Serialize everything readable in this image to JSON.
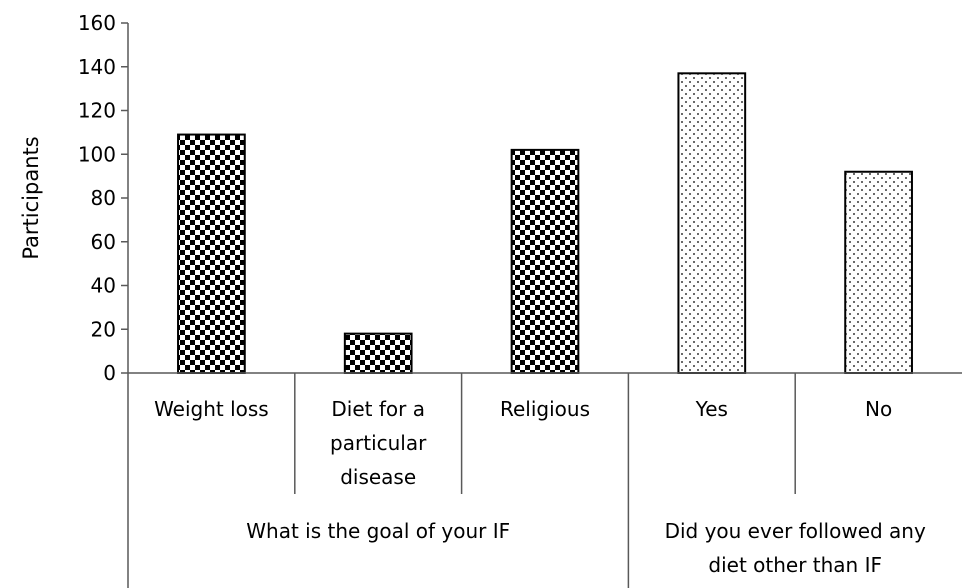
{
  "chart_data": {
    "type": "bar",
    "ylabel": "Participants",
    "xlabel": "",
    "ylim": [
      0,
      160
    ],
    "yticks": [
      0,
      20,
      40,
      60,
      80,
      100,
      120,
      140,
      160
    ],
    "grid": false,
    "legend": "none",
    "groups": [
      {
        "label": "What is the goal of your IF",
        "label_lines": [
          "What is the goal of your IF"
        ],
        "pattern": "checker",
        "categories": [
          {
            "label_lines": [
              "Weight loss"
            ],
            "value": 109
          },
          {
            "label_lines": [
              "Diet for a",
              "particular",
              "disease"
            ],
            "value": 18
          },
          {
            "label_lines": [
              "Religious"
            ],
            "value": 102
          }
        ]
      },
      {
        "label": "Did you ever followed any diet other than IF",
        "label_lines": [
          "Did you ever followed any",
          "diet other than IF"
        ],
        "pattern": "dots",
        "categories": [
          {
            "label_lines": [
              "Yes"
            ],
            "value": 137
          },
          {
            "label_lines": [
              "No"
            ],
            "value": 92
          }
        ]
      }
    ],
    "colors": {
      "bar_stroke": "#000000",
      "axis": "#595959"
    }
  }
}
